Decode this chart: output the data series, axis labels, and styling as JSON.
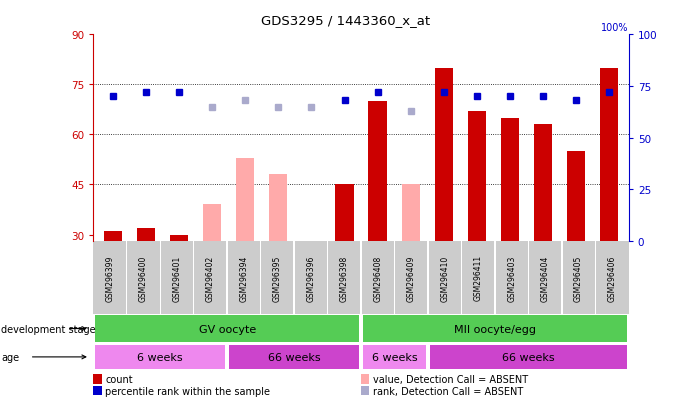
{
  "title": "GDS3295 / 1443360_x_at",
  "samples": [
    "GSM296399",
    "GSM296400",
    "GSM296401",
    "GSM296402",
    "GSM296394",
    "GSM296395",
    "GSM296396",
    "GSM296398",
    "GSM296408",
    "GSM296409",
    "GSM296410",
    "GSM296411",
    "GSM296403",
    "GSM296404",
    "GSM296405",
    "GSM296406"
  ],
  "count_values": [
    31,
    32,
    30,
    null,
    null,
    null,
    null,
    45,
    70,
    null,
    80,
    67,
    65,
    63,
    55,
    80
  ],
  "count_absent": [
    null,
    null,
    null,
    39,
    53,
    48,
    null,
    null,
    null,
    45,
    null,
    null,
    null,
    null,
    null,
    null
  ],
  "rank_values": [
    70,
    72,
    72,
    null,
    null,
    null,
    null,
    68,
    72,
    null,
    72,
    70,
    70,
    70,
    68,
    72
  ],
  "rank_absent": [
    null,
    null,
    null,
    65,
    68,
    65,
    65,
    null,
    null,
    63,
    null,
    null,
    null,
    null,
    null,
    null
  ],
  "ylim_left": [
    28,
    90
  ],
  "ylim_right": [
    0,
    100
  ],
  "yticks_left": [
    30,
    45,
    60,
    75,
    90
  ],
  "yticks_right": [
    0,
    25,
    50,
    75,
    100
  ],
  "bar_color_present": "#cc0000",
  "bar_color_absent": "#ffaaaa",
  "rank_color_present": "#0000cc",
  "rank_color_absent": "#aaaacc",
  "dev_stage_groups": [
    {
      "label": "GV oocyte",
      "start": 0,
      "end": 7,
      "color": "#55cc55"
    },
    {
      "label": "MII oocyte/egg",
      "start": 8,
      "end": 15,
      "color": "#55cc55"
    }
  ],
  "age_groups": [
    {
      "label": "6 weeks",
      "start": 0,
      "end": 3,
      "color": "#ee88ee"
    },
    {
      "label": "66 weeks",
      "start": 4,
      "end": 7,
      "color": "#cc44cc"
    },
    {
      "label": "6 weeks",
      "start": 8,
      "end": 9,
      "color": "#ee88ee"
    },
    {
      "label": "66 weeks",
      "start": 10,
      "end": 15,
      "color": "#cc44cc"
    }
  ],
  "legend_items": [
    {
      "label": "count",
      "color": "#cc0000"
    },
    {
      "label": "percentile rank within the sample",
      "color": "#0000cc"
    },
    {
      "label": "value, Detection Call = ABSENT",
      "color": "#ffaaaa"
    },
    {
      "label": "rank, Detection Call = ABSENT",
      "color": "#aaaacc"
    }
  ],
  "left_axis_color": "#cc0000",
  "right_axis_color": "#0000cc",
  "background_color": "#ffffff"
}
